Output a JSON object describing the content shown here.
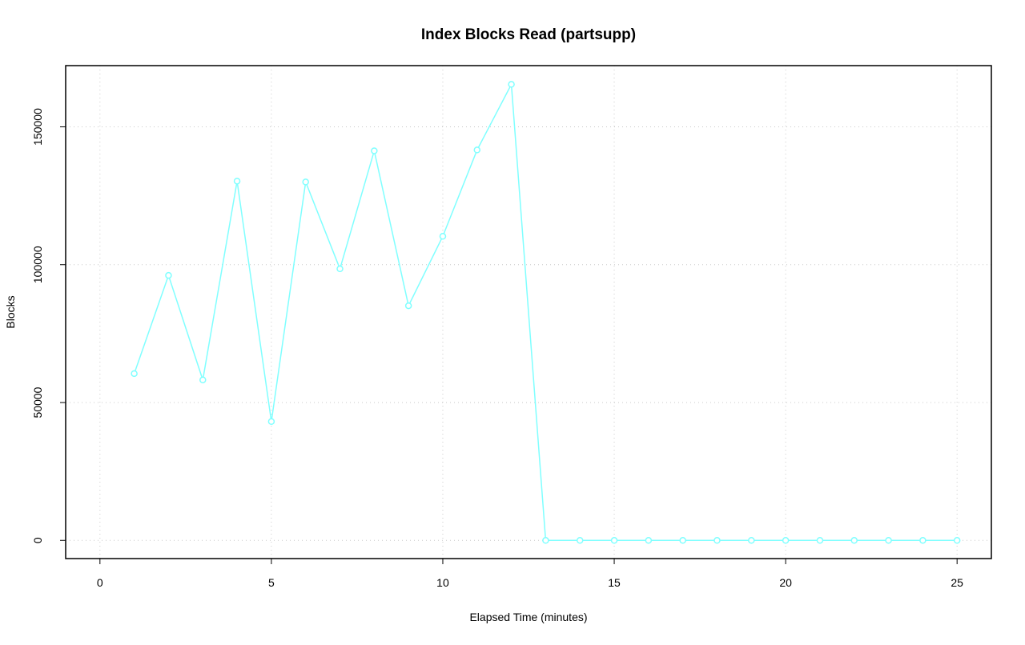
{
  "chart_data": {
    "type": "line",
    "title": "Index Blocks Read (partsupp)",
    "x_label": "Elapsed Time (minutes)",
    "y_label": "Blocks",
    "x": [
      1,
      2,
      3,
      4,
      5,
      6,
      7,
      8,
      9,
      10,
      11,
      12,
      13,
      14,
      15,
      16,
      17,
      18,
      19,
      20,
      21,
      22,
      23,
      24,
      25
    ],
    "series": [
      {
        "name": "partsupp",
        "color": "#80ffff",
        "values": [
          60500,
          96100,
          58200,
          130300,
          43100,
          130000,
          98500,
          141300,
          85100,
          110300,
          141600,
          165400,
          0,
          0,
          0,
          0,
          0,
          0,
          0,
          0,
          0,
          0,
          0,
          0,
          0
        ]
      }
    ],
    "xlim": [
      -1,
      26
    ],
    "xticks": [
      0,
      5,
      10,
      15,
      20,
      25
    ],
    "ylim": [
      -6600,
      172200
    ],
    "yticks": [
      0,
      50000,
      100000,
      150000
    ],
    "grid": true
  }
}
